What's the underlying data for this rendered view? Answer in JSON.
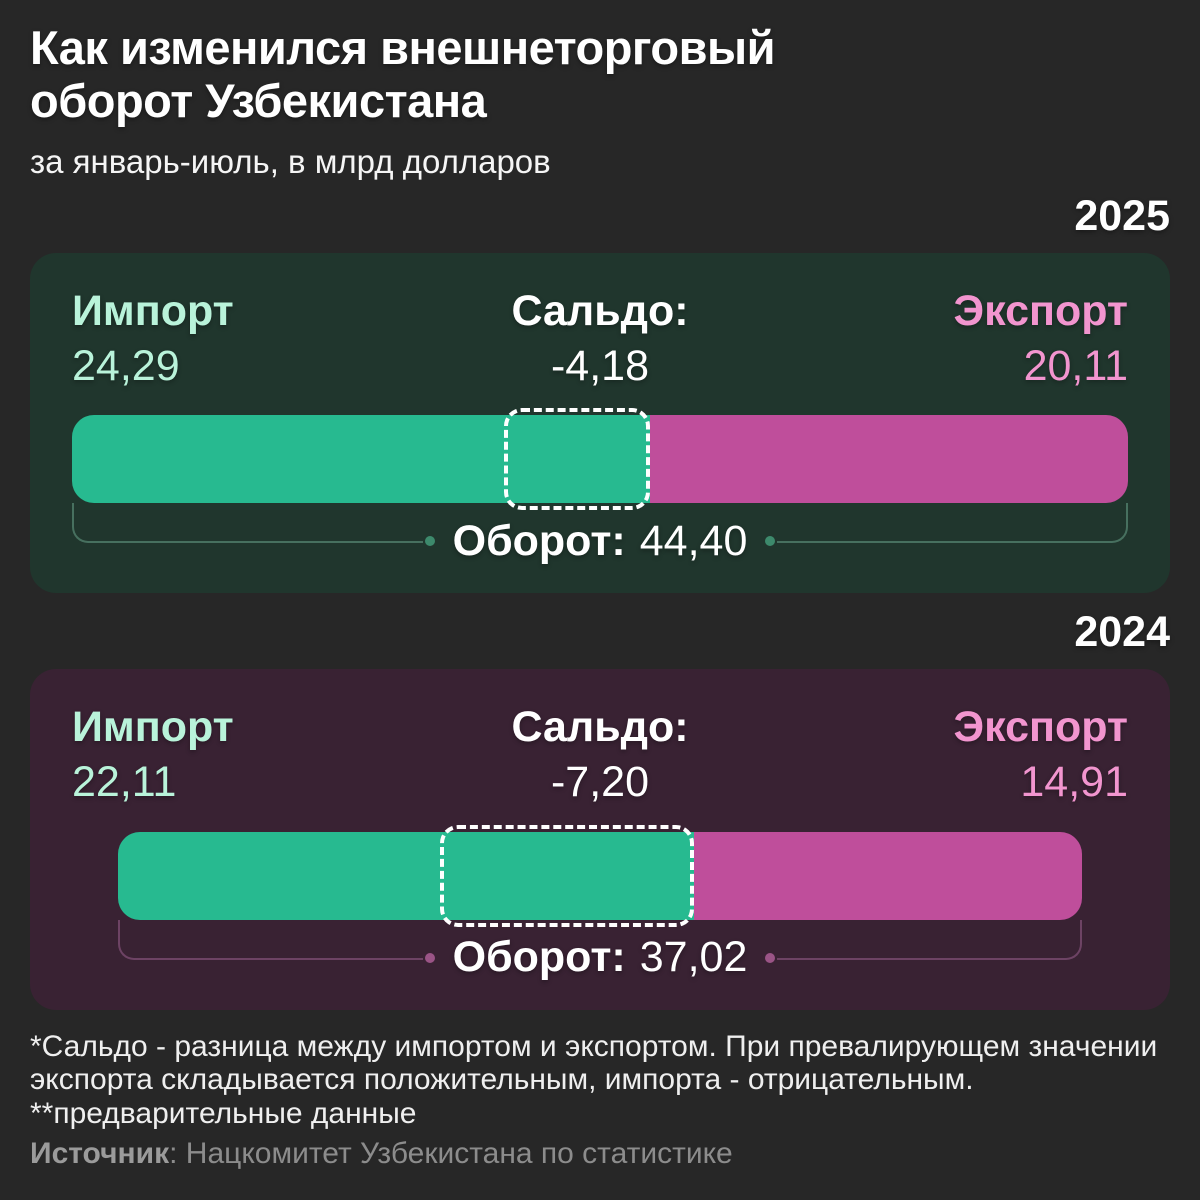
{
  "header": {
    "title_lines": [
      "Как изменился внешнеторговый",
      "оборот Узбекистана"
    ],
    "subtitle": "за январь-июль, в млрд долларов"
  },
  "labels": {
    "import": "Импорт",
    "saldo": "Сальдо:",
    "export": "Экспорт",
    "turnover": "Оборот:"
  },
  "panels": [
    {
      "year": "2025",
      "import_value": "24,29",
      "saldo_value": "-4,18",
      "export_value": "20,11",
      "turnover_value": "44,40",
      "import_num": 24.29,
      "export_num": 20.11
    },
    {
      "year": "2024",
      "import_value": "22,11",
      "saldo_value": "-7,20",
      "export_value": "14,91",
      "turnover_value": "37,02",
      "import_num": 22.11,
      "export_num": 14.91
    }
  ],
  "chart_data": {
    "type": "bar",
    "title": "Как изменился внешнеторговый оборот Узбекистана",
    "subtitle": "за январь-июль, в млрд долларов",
    "categories": [
      "2025",
      "2024"
    ],
    "series": [
      {
        "name": "Импорт",
        "values": [
          24.29,
          22.11
        ],
        "color": "#27ba90"
      },
      {
        "name": "Экспорт",
        "values": [
          20.11,
          14.91
        ],
        "color": "#bf4e9b"
      }
    ],
    "saldo": [
      -4.18,
      -7.2
    ],
    "turnover": [
      44.4,
      37.02
    ],
    "layout": "horizontal stacked bars; bar length proportional to turnover; dashed white box marks |saldo| at the import/export boundary",
    "colors": {
      "background": "#272727",
      "panel_2025": "#20362d",
      "panel_2024": "#392233",
      "import_text": "#b9f3da",
      "export_text": "#f295cf",
      "import_bar": "#27ba90",
      "export_bar": "#bf4e9b"
    }
  },
  "footnotes": [
    "*Сальдо - разница между импортом и экспортом. При превалирующем значении экспорта складывается положительным, импорта - отрицательным.",
    "**предварительные данные"
  ],
  "source": {
    "label": "Источник",
    "text": ": Нацкомитет Узбекистана по статистике"
  }
}
